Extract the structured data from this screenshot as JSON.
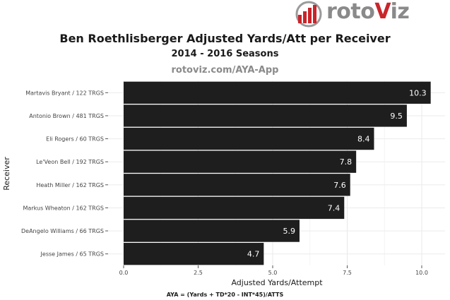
{
  "brand": {
    "name_prefix": "roto",
    "name_accent": "V",
    "name_suffix": "iz",
    "accent_color": "#c9252b",
    "text_color": "#8a8a8a"
  },
  "header": {
    "title": "Ben Roethlisberger Adjusted Yards/Att per Receiver",
    "subtitle": "2014 - 2016 Seasons",
    "source": "rotoviz.com/AYA-App"
  },
  "footer": {
    "formula": "AYA = (Yards + TD*20 - INT*45)/ATTS"
  },
  "chart_data": {
    "type": "bar",
    "orientation": "horizontal",
    "title": "Ben Roethlisberger Adjusted Yards/Att per Receiver",
    "xlabel": "Adjusted Yards/Attempt",
    "ylabel": "Receiver",
    "categories": [
      "Martavis Bryant / 122 TRGS",
      "Antonio Brown  / 481 TRGS",
      "Eli Rogers / 60 TRGS",
      "Le'Veon Bell / 192 TRGS",
      "Heath Miller / 162 TRGS",
      "Markus Wheaton / 162 TRGS",
      "DeAngelo Williams / 66 TRGS",
      "Jesse James / 65 TRGS"
    ],
    "values": [
      10.3,
      9.5,
      8.4,
      7.8,
      7.6,
      7.4,
      5.9,
      4.7
    ],
    "value_labels": [
      "10.3",
      "9.5",
      "8.4",
      "7.8",
      "7.6",
      "7.4",
      "5.9",
      "4.7"
    ],
    "xlim": [
      0,
      10.5
    ],
    "xticks": [
      0,
      2.5,
      5,
      7.5,
      10
    ],
    "xtick_labels": [
      "0.0",
      "2.5",
      "5.0",
      "7.5",
      "10.0"
    ],
    "grid": true,
    "bar_color": "#1e1e1e",
    "label_color": "#ffffff"
  }
}
